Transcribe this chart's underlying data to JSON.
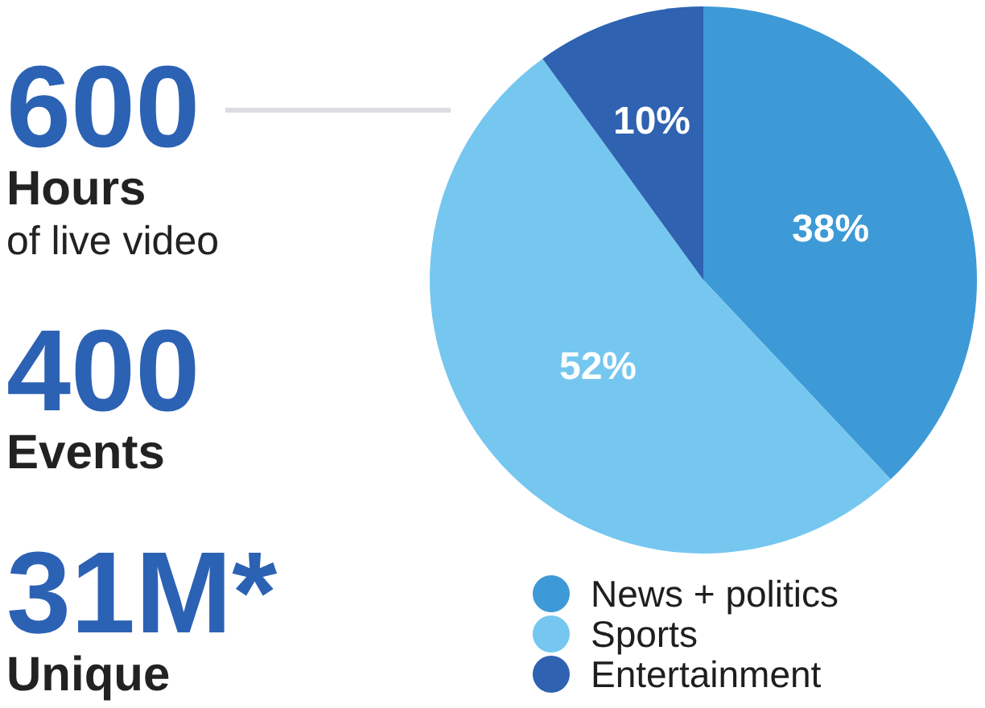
{
  "chart_data": [
    {
      "type": "other",
      "annotations": [
        "600\nHours\nof live video",
        "400\nEvents",
        "31M*\nUnique"
      ]
    },
    {
      "type": "pie",
      "categories": [
        "News + politics",
        "Sports",
        "Entertainment"
      ],
      "values": [
        38,
        52,
        10
      ],
      "colors": [
        "#3d9ad6",
        "#75c7ef",
        "#2f62b0"
      ],
      "value_labels": [
        "38%",
        "52%",
        "10%"
      ],
      "legend": "bottom right"
    }
  ]
}
